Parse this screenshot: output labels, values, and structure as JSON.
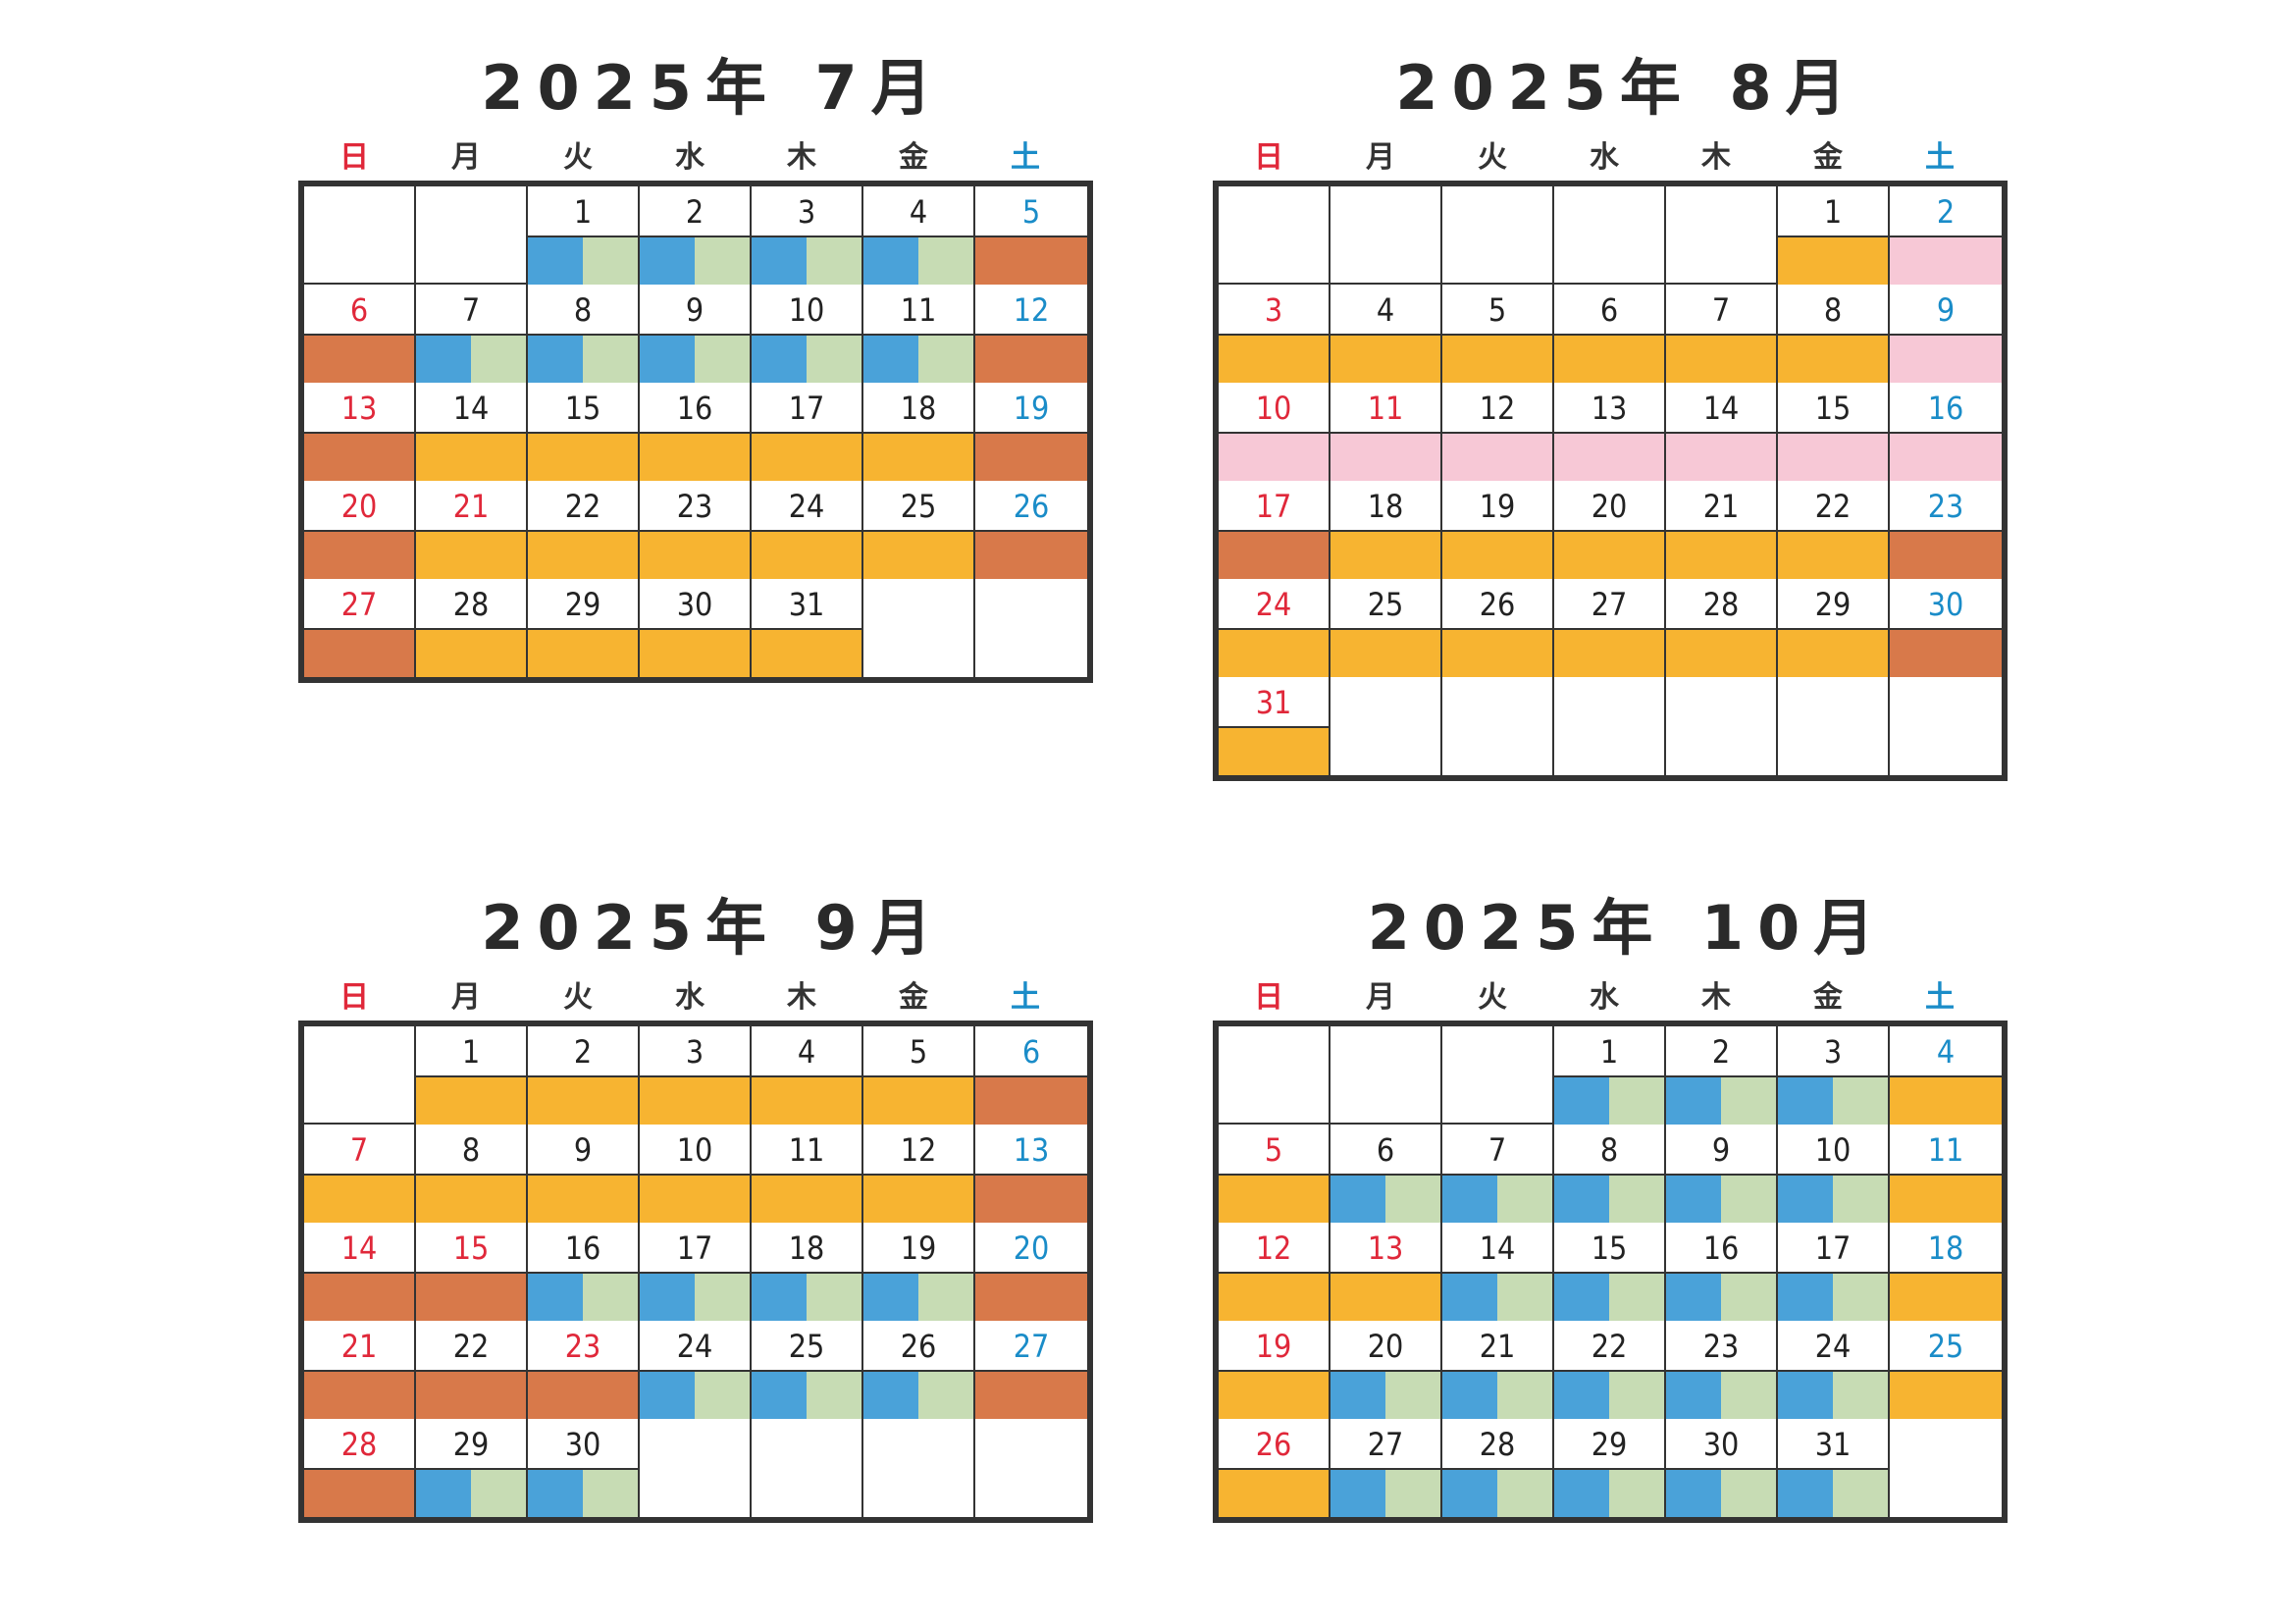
{
  "weekdays": [
    "日",
    "月",
    "火",
    "水",
    "木",
    "金",
    "土"
  ],
  "calendars": [
    {
      "title": "2025年 7月",
      "days": [
        {
          "d": "",
          "c": "",
          "b": ""
        },
        {
          "d": "",
          "c": "",
          "b": ""
        },
        {
          "d": "1",
          "c": "",
          "b": "bg"
        },
        {
          "d": "2",
          "c": "",
          "b": "bg"
        },
        {
          "d": "3",
          "c": "",
          "b": "bg"
        },
        {
          "d": "4",
          "c": "",
          "b": "bg"
        },
        {
          "d": "5",
          "c": "blue",
          "b": "r"
        },
        {
          "d": "6",
          "c": "red",
          "b": "r"
        },
        {
          "d": "7",
          "c": "",
          "b": "bg"
        },
        {
          "d": "8",
          "c": "",
          "b": "bg"
        },
        {
          "d": "9",
          "c": "",
          "b": "bg"
        },
        {
          "d": "10",
          "c": "",
          "b": "bg"
        },
        {
          "d": "11",
          "c": "",
          "b": "bg"
        },
        {
          "d": "12",
          "c": "blue",
          "b": "r"
        },
        {
          "d": "13",
          "c": "red",
          "b": "r"
        },
        {
          "d": "14",
          "c": "",
          "b": "o"
        },
        {
          "d": "15",
          "c": "",
          "b": "o"
        },
        {
          "d": "16",
          "c": "",
          "b": "o"
        },
        {
          "d": "17",
          "c": "",
          "b": "o"
        },
        {
          "d": "18",
          "c": "",
          "b": "o"
        },
        {
          "d": "19",
          "c": "blue",
          "b": "r"
        },
        {
          "d": "20",
          "c": "red",
          "b": "r"
        },
        {
          "d": "21",
          "c": "red",
          "b": "o"
        },
        {
          "d": "22",
          "c": "",
          "b": "o"
        },
        {
          "d": "23",
          "c": "",
          "b": "o"
        },
        {
          "d": "24",
          "c": "",
          "b": "o"
        },
        {
          "d": "25",
          "c": "",
          "b": "o"
        },
        {
          "d": "26",
          "c": "blue",
          "b": "r"
        },
        {
          "d": "27",
          "c": "red",
          "b": "r"
        },
        {
          "d": "28",
          "c": "",
          "b": "o"
        },
        {
          "d": "29",
          "c": "",
          "b": "o"
        },
        {
          "d": "30",
          "c": "",
          "b": "o"
        },
        {
          "d": "31",
          "c": "",
          "b": "o"
        },
        {
          "d": "",
          "c": "",
          "b": ""
        },
        {
          "d": "",
          "c": "",
          "b": ""
        }
      ]
    },
    {
      "title": "2025年 8月",
      "days": [
        {
          "d": "",
          "c": "",
          "b": ""
        },
        {
          "d": "",
          "c": "",
          "b": ""
        },
        {
          "d": "",
          "c": "",
          "b": ""
        },
        {
          "d": "",
          "c": "",
          "b": ""
        },
        {
          "d": "",
          "c": "",
          "b": ""
        },
        {
          "d": "1",
          "c": "",
          "b": "o"
        },
        {
          "d": "2",
          "c": "blue",
          "b": "p"
        },
        {
          "d": "3",
          "c": "red",
          "b": "o"
        },
        {
          "d": "4",
          "c": "",
          "b": "o"
        },
        {
          "d": "5",
          "c": "",
          "b": "o"
        },
        {
          "d": "6",
          "c": "",
          "b": "o"
        },
        {
          "d": "7",
          "c": "",
          "b": "o"
        },
        {
          "d": "8",
          "c": "",
          "b": "o"
        },
        {
          "d": "9",
          "c": "blue",
          "b": "p"
        },
        {
          "d": "10",
          "c": "red",
          "b": "p"
        },
        {
          "d": "11",
          "c": "red",
          "b": "p"
        },
        {
          "d": "12",
          "c": "",
          "b": "p"
        },
        {
          "d": "13",
          "c": "",
          "b": "p"
        },
        {
          "d": "14",
          "c": "",
          "b": "p"
        },
        {
          "d": "15",
          "c": "",
          "b": "p"
        },
        {
          "d": "16",
          "c": "blue",
          "b": "p"
        },
        {
          "d": "17",
          "c": "red",
          "b": "r"
        },
        {
          "d": "18",
          "c": "",
          "b": "o"
        },
        {
          "d": "19",
          "c": "",
          "b": "o"
        },
        {
          "d": "20",
          "c": "",
          "b": "o"
        },
        {
          "d": "21",
          "c": "",
          "b": "o"
        },
        {
          "d": "22",
          "c": "",
          "b": "o"
        },
        {
          "d": "23",
          "c": "blue",
          "b": "r"
        },
        {
          "d": "24",
          "c": "red",
          "b": "o"
        },
        {
          "d": "25",
          "c": "",
          "b": "o"
        },
        {
          "d": "26",
          "c": "",
          "b": "o"
        },
        {
          "d": "27",
          "c": "",
          "b": "o"
        },
        {
          "d": "28",
          "c": "",
          "b": "o"
        },
        {
          "d": "29",
          "c": "",
          "b": "o"
        },
        {
          "d": "30",
          "c": "blue",
          "b": "r"
        },
        {
          "d": "31",
          "c": "red",
          "b": "o"
        },
        {
          "d": "",
          "c": "",
          "b": ""
        },
        {
          "d": "",
          "c": "",
          "b": ""
        },
        {
          "d": "",
          "c": "",
          "b": ""
        },
        {
          "d": "",
          "c": "",
          "b": ""
        },
        {
          "d": "",
          "c": "",
          "b": ""
        },
        {
          "d": "",
          "c": "",
          "b": ""
        }
      ]
    },
    {
      "title": "2025年 9月",
      "days": [
        {
          "d": "",
          "c": "",
          "b": ""
        },
        {
          "d": "1",
          "c": "",
          "b": "o"
        },
        {
          "d": "2",
          "c": "",
          "b": "o"
        },
        {
          "d": "3",
          "c": "",
          "b": "o"
        },
        {
          "d": "4",
          "c": "",
          "b": "o"
        },
        {
          "d": "5",
          "c": "",
          "b": "o"
        },
        {
          "d": "6",
          "c": "blue",
          "b": "r"
        },
        {
          "d": "7",
          "c": "red",
          "b": "o"
        },
        {
          "d": "8",
          "c": "",
          "b": "o"
        },
        {
          "d": "9",
          "c": "",
          "b": "o"
        },
        {
          "d": "10",
          "c": "",
          "b": "o"
        },
        {
          "d": "11",
          "c": "",
          "b": "o"
        },
        {
          "d": "12",
          "c": "",
          "b": "o"
        },
        {
          "d": "13",
          "c": "blue",
          "b": "r"
        },
        {
          "d": "14",
          "c": "red",
          "b": "r"
        },
        {
          "d": "15",
          "c": "red",
          "b": "r"
        },
        {
          "d": "16",
          "c": "",
          "b": "bg"
        },
        {
          "d": "17",
          "c": "",
          "b": "bg"
        },
        {
          "d": "18",
          "c": "",
          "b": "bg"
        },
        {
          "d": "19",
          "c": "",
          "b": "bg"
        },
        {
          "d": "20",
          "c": "blue",
          "b": "r"
        },
        {
          "d": "21",
          "c": "red",
          "b": "r"
        },
        {
          "d": "22",
          "c": "",
          "b": "r"
        },
        {
          "d": "23",
          "c": "red",
          "b": "r"
        },
        {
          "d": "24",
          "c": "",
          "b": "bg"
        },
        {
          "d": "25",
          "c": "",
          "b": "bg"
        },
        {
          "d": "26",
          "c": "",
          "b": "bg"
        },
        {
          "d": "27",
          "c": "blue",
          "b": "r"
        },
        {
          "d": "28",
          "c": "red",
          "b": "r"
        },
        {
          "d": "29",
          "c": "",
          "b": "bg"
        },
        {
          "d": "30",
          "c": "",
          "b": "bg"
        },
        {
          "d": "",
          "c": "",
          "b": ""
        },
        {
          "d": "",
          "c": "",
          "b": ""
        },
        {
          "d": "",
          "c": "",
          "b": ""
        },
        {
          "d": "",
          "c": "",
          "b": ""
        }
      ]
    },
    {
      "title": "2025年 10月",
      "days": [
        {
          "d": "",
          "c": "",
          "b": ""
        },
        {
          "d": "",
          "c": "",
          "b": ""
        },
        {
          "d": "",
          "c": "",
          "b": ""
        },
        {
          "d": "1",
          "c": "",
          "b": "bg"
        },
        {
          "d": "2",
          "c": "",
          "b": "bg"
        },
        {
          "d": "3",
          "c": "",
          "b": "bg"
        },
        {
          "d": "4",
          "c": "blue",
          "b": "o"
        },
        {
          "d": "5",
          "c": "red",
          "b": "o"
        },
        {
          "d": "6",
          "c": "",
          "b": "bg"
        },
        {
          "d": "7",
          "c": "",
          "b": "bg"
        },
        {
          "d": "8",
          "c": "",
          "b": "bg"
        },
        {
          "d": "9",
          "c": "",
          "b": "bg"
        },
        {
          "d": "10",
          "c": "",
          "b": "bg"
        },
        {
          "d": "11",
          "c": "blue",
          "b": "o"
        },
        {
          "d": "12",
          "c": "red",
          "b": "o"
        },
        {
          "d": "13",
          "c": "red",
          "b": "o"
        },
        {
          "d": "14",
          "c": "",
          "b": "bg"
        },
        {
          "d": "15",
          "c": "",
          "b": "bg"
        },
        {
          "d": "16",
          "c": "",
          "b": "bg"
        },
        {
          "d": "17",
          "c": "",
          "b": "bg"
        },
        {
          "d": "18",
          "c": "blue",
          "b": "o"
        },
        {
          "d": "19",
          "c": "red",
          "b": "o"
        },
        {
          "d": "20",
          "c": "",
          "b": "bg"
        },
        {
          "d": "21",
          "c": "",
          "b": "bg"
        },
        {
          "d": "22",
          "c": "",
          "b": "bg"
        },
        {
          "d": "23",
          "c": "",
          "b": "bg"
        },
        {
          "d": "24",
          "c": "",
          "b": "bg"
        },
        {
          "d": "25",
          "c": "blue",
          "b": "o"
        },
        {
          "d": "26",
          "c": "red",
          "b": "o"
        },
        {
          "d": "27",
          "c": "",
          "b": "bg"
        },
        {
          "d": "28",
          "c": "",
          "b": "bg"
        },
        {
          "d": "29",
          "c": "",
          "b": "bg"
        },
        {
          "d": "30",
          "c": "",
          "b": "bg"
        },
        {
          "d": "31",
          "c": "",
          "b": "bg"
        },
        {
          "d": "",
          "c": "",
          "b": ""
        }
      ]
    }
  ]
}
